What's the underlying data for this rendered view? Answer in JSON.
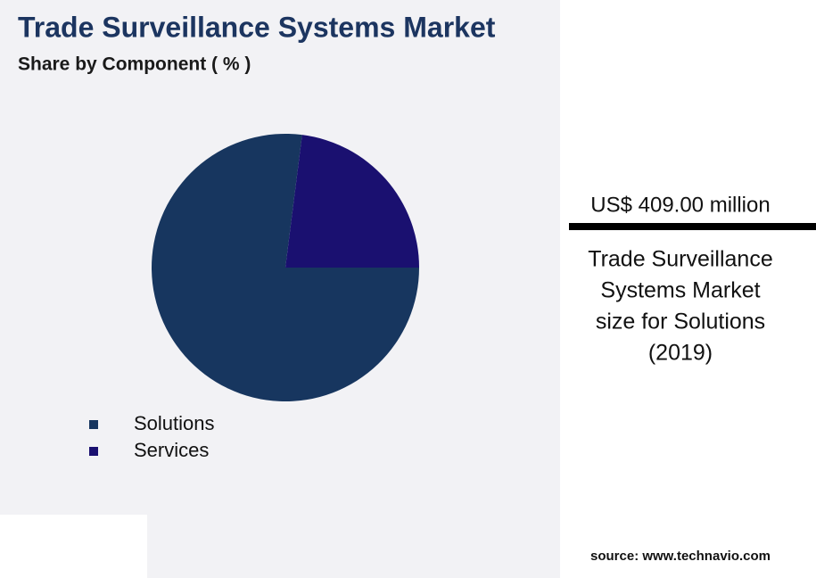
{
  "chart_data": {
    "type": "pie",
    "title": "Trade Surveillance Systems Market",
    "subtitle": "Share by Component ( % )",
    "categories": [
      "Solutions",
      "Services"
    ],
    "values": [
      77,
      23
    ],
    "colors": [
      "#17365f",
      "#1a1070"
    ]
  },
  "highlight": {
    "value": "US$ 409.00 million",
    "caption": [
      "Trade Surveillance",
      "Systems Market",
      "size for Solutions",
      "(2019)"
    ]
  },
  "source": "source: www.technavio.com"
}
